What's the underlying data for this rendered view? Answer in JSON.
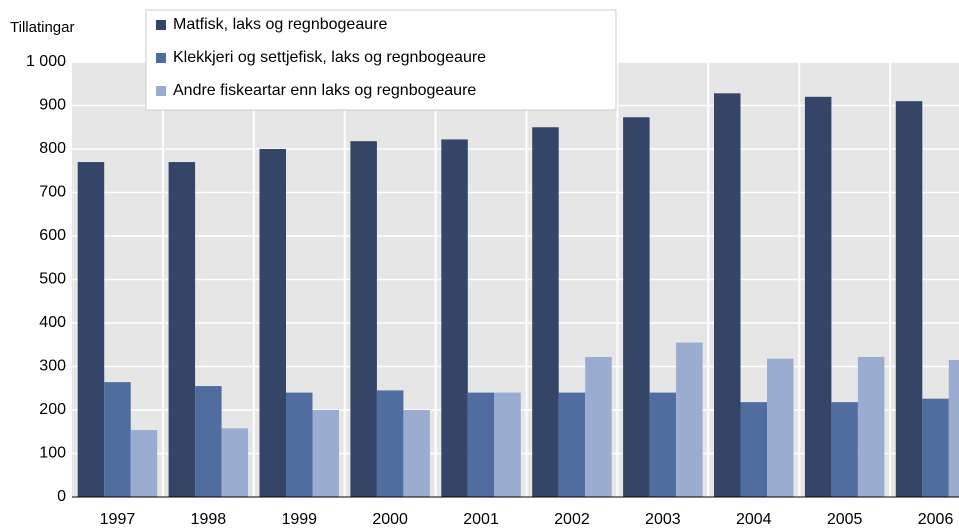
{
  "chart_data": {
    "type": "bar",
    "y_label": "Tillatingar",
    "categories": [
      "1997",
      "1998",
      "1999",
      "2000",
      "2001",
      "2002",
      "2003",
      "2004",
      "2005",
      "2006"
    ],
    "series": [
      {
        "name": "Matfisk, laks og regnbogeaure",
        "color": "#344567",
        "values": [
          770,
          770,
          800,
          818,
          822,
          850,
          873,
          928,
          920,
          910
        ]
      },
      {
        "name": "Klekkjeri og settjefisk, laks og regnbogeaure",
        "color": "#4f6d9f",
        "values": [
          264,
          255,
          240,
          245,
          240,
          240,
          240,
          218,
          218,
          226
        ]
      },
      {
        "name": "Andre fiskeartar enn laks og regnbogeaure",
        "color": "#9aadd0",
        "values": [
          154,
          158,
          200,
          200,
          240,
          322,
          355,
          318,
          322,
          315
        ]
      }
    ],
    "ylim": [
      0,
      1000
    ],
    "yticks": [
      0,
      100,
      200,
      300,
      400,
      500,
      600,
      700,
      800,
      900,
      {
        "value": 1000,
        "label": "1 000"
      }
    ],
    "grid": true
  }
}
